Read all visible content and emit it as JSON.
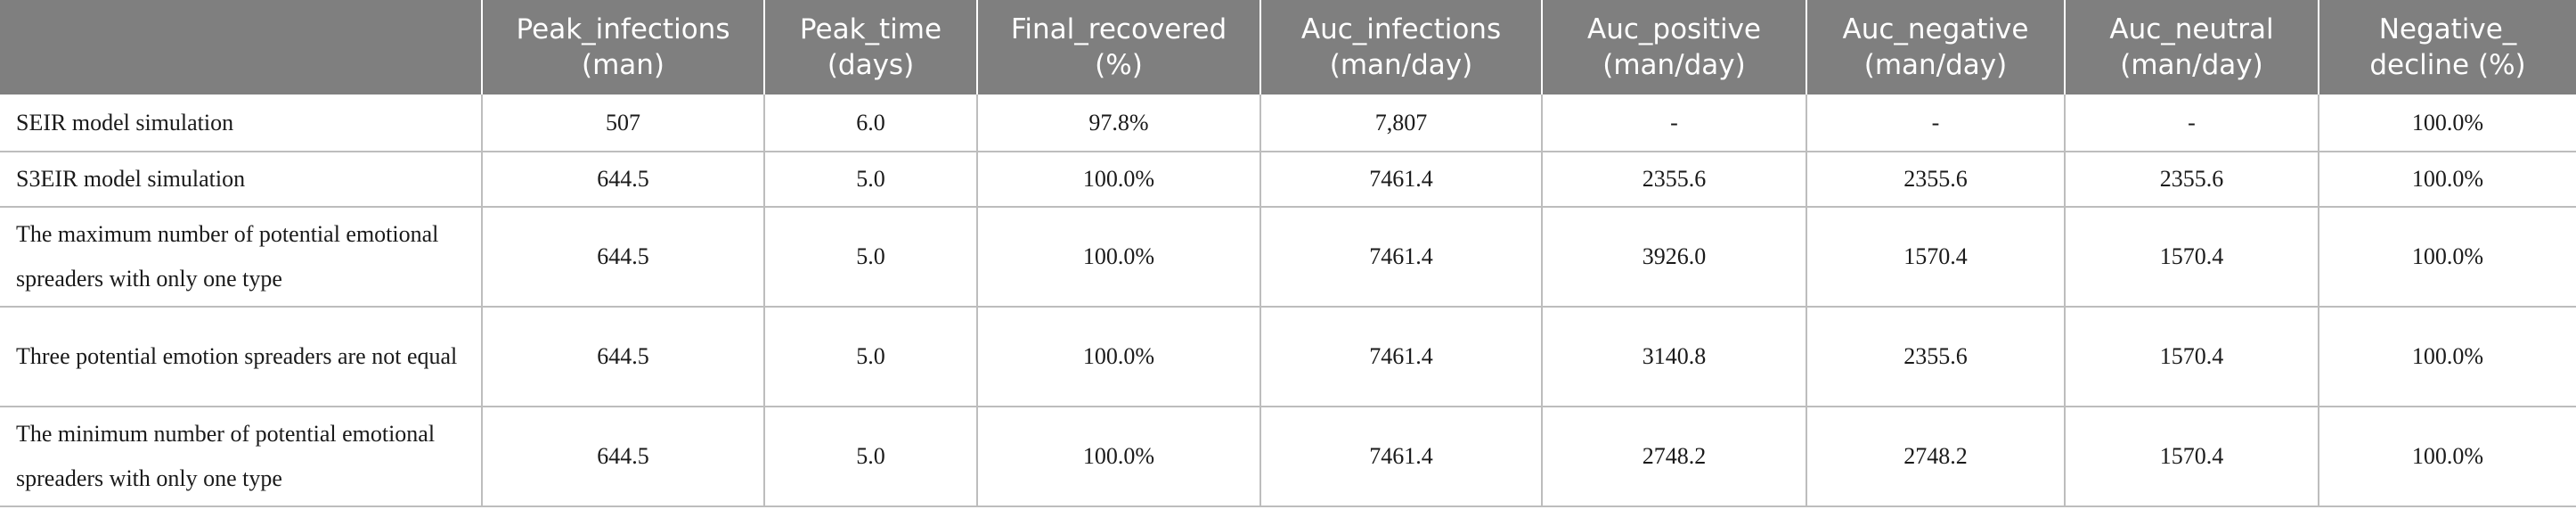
{
  "table": {
    "headers": [
      "",
      "Peak_infections\n(man)",
      "Peak_time\n(days)",
      "Final_recovered\n(%)",
      "Auc_infections\n(man/day)",
      "Auc_positive\n(man/day)",
      "Auc_negative\n(man/day)",
      "Auc_neutral\n(man/day)",
      "Negative_\ndecline (%)"
    ],
    "rows": [
      [
        "SEIR model simulation",
        "507",
        "6.0",
        "97.8%",
        "7,807",
        "-",
        "-",
        "-",
        "100.0%"
      ],
      [
        "S3EIR model simulation",
        "644.5",
        "5.0",
        "100.0%",
        "7461.4",
        "2355.6",
        "2355.6",
        "2355.6",
        "100.0%"
      ],
      [
        "The maximum number of potential emotional spreaders with only one type",
        "644.5",
        "5.0",
        "100.0%",
        "7461.4",
        "3926.0",
        "1570.4",
        "1570.4",
        "100.0%"
      ],
      [
        "Three potential emotion spreaders are not equal",
        "644.5",
        "5.0",
        "100.0%",
        "7461.4",
        "3140.8",
        "2355.6",
        "1570.4",
        "100.0%"
      ],
      [
        "The minimum number of potential emotional spreaders with only one type",
        "644.5",
        "5.0",
        "100.0%",
        "7461.4",
        "2748.2",
        "2748.2",
        "1570.4",
        "100.0%"
      ]
    ]
  }
}
